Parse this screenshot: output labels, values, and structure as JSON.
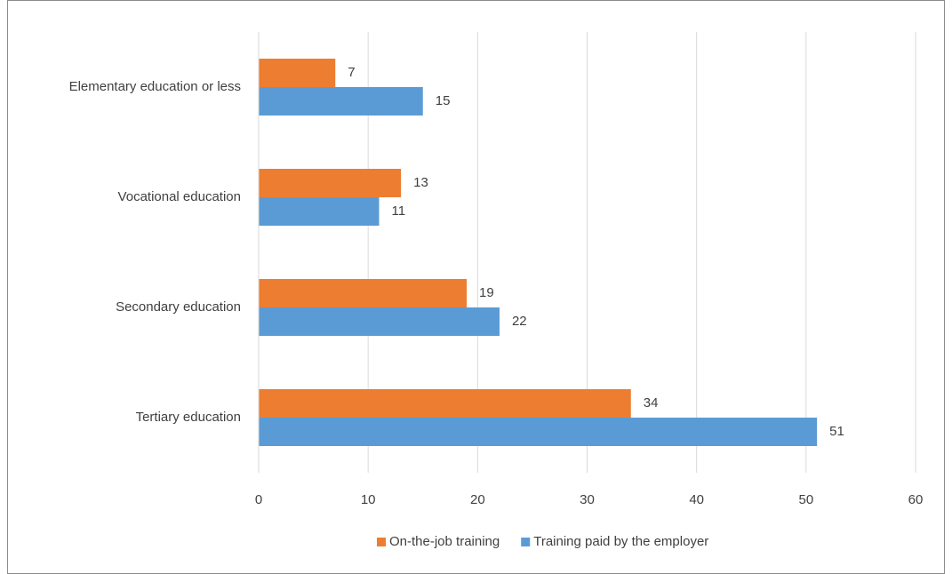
{
  "chart_data": {
    "type": "hbar",
    "categories": [
      "Elementary education or less",
      "Vocational education",
      "Secondary education",
      "Tertiary education"
    ],
    "series": [
      {
        "name": "On-the-job training",
        "color": "#ed7d31",
        "values": [
          7,
          13,
          19,
          34
        ]
      },
      {
        "name": "Training paid by the employer",
        "color": "#5b9bd5",
        "values": [
          15,
          11,
          22,
          51
        ]
      }
    ],
    "xlim": [
      0,
      60
    ],
    "xticks": [
      0,
      10,
      20,
      30,
      40,
      50,
      60
    ],
    "grid": true,
    "legend": "bottom"
  }
}
